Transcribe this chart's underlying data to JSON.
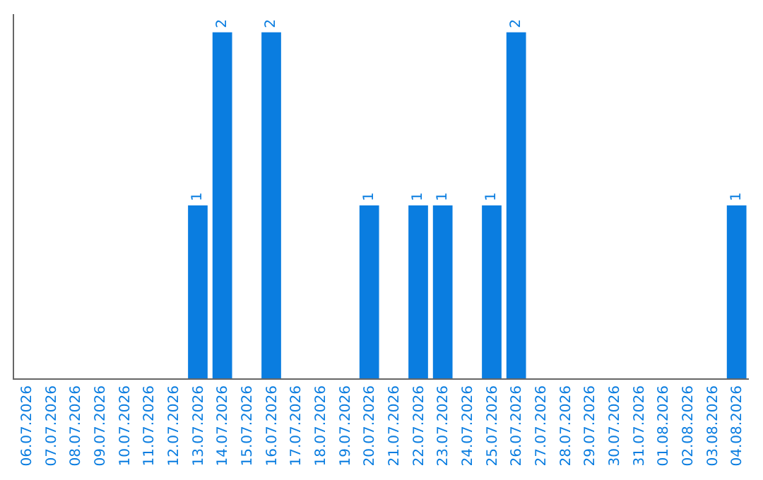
{
  "chart_data": {
    "type": "bar",
    "categories": [
      "06.07.2026",
      "07.07.2026",
      "08.07.2026",
      "09.07.2026",
      "10.07.2026",
      "11.07.2026",
      "12.07.2026",
      "13.07.2026",
      "14.07.2026",
      "15.07.2026",
      "16.07.2026",
      "17.07.2026",
      "18.07.2026",
      "19.07.2026",
      "20.07.2026",
      "21.07.2026",
      "22.07.2026",
      "23.07.2026",
      "24.07.2026",
      "25.07.2026",
      "26.07.2026",
      "27.07.2026",
      "28.07.2026",
      "29.07.2026",
      "30.07.2026",
      "31.07.2026",
      "01.08.2026",
      "02.08.2026",
      "03.08.2026",
      "04.08.2026"
    ],
    "values": [
      0,
      0,
      0,
      0,
      0,
      0,
      0,
      1,
      2,
      0,
      2,
      0,
      0,
      0,
      1,
      0,
      1,
      1,
      0,
      1,
      2,
      0,
      0,
      0,
      0,
      0,
      0,
      0,
      0,
      1
    ],
    "value_labels": [
      null,
      null,
      null,
      null,
      null,
      null,
      null,
      "1",
      "2",
      null,
      "2",
      null,
      null,
      null,
      "1",
      null,
      "1",
      "1",
      null,
      "1",
      "2",
      null,
      null,
      null,
      null,
      null,
      null,
      null,
      null,
      "1"
    ],
    "color": "#0a7de0",
    "legend": false
  }
}
